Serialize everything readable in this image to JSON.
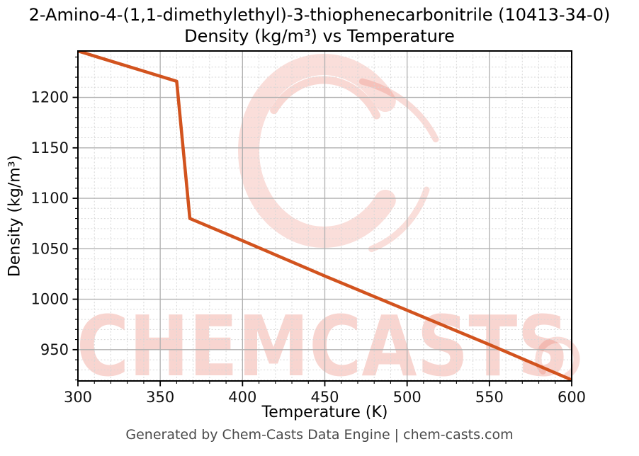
{
  "colors": {
    "line": "#d2531e",
    "watermark": "#e45c48",
    "grid_major": "#b0b0b0",
    "grid_minor": "#d6d6d6",
    "axis_spine": "#000000",
    "tick_label": "#111111",
    "footer_text": "#4a4a4a"
  },
  "header": {
    "title_line1": "2-Amino-4-(1,1-dimethylethyl)-3-thiophenecarbonitrile (10413-34-0)",
    "title_line2": "Density (kg/m³) vs Temperature"
  },
  "watermark": {
    "text": "CHEMCASTS",
    "logo": "chem-casts-c-swirl"
  },
  "footer": {
    "credit": "Generated by Chem-Casts Data Engine | chem-casts.com"
  },
  "chart_data": {
    "type": "line",
    "title": "2-Amino-4-(1,1-dimethylethyl)-3-thiophenecarbonitrile (10413-34-0) Density (kg/m³) vs Temperature",
    "xlabel": "Temperature (K)",
    "ylabel": "Density (kg/m³)",
    "xlim": [
      300,
      600
    ],
    "ylim": [
      919,
      1246
    ],
    "x_major_ticks": [
      300,
      350,
      400,
      450,
      500,
      550,
      600
    ],
    "y_major_ticks": [
      950,
      1000,
      1050,
      1100,
      1150,
      1200
    ],
    "x_minor_step": 10,
    "y_minor_step": 10,
    "grid": {
      "major": "solid gray",
      "minor": "dashed light-gray"
    },
    "legend_position": "none",
    "series": [
      {
        "name": "Density",
        "points": [
          [
            300,
            1246
          ],
          [
            320,
            1236
          ],
          [
            340,
            1226
          ],
          [
            360,
            1216
          ],
          [
            368,
            1080
          ],
          [
            400,
            1058
          ],
          [
            450,
            1023
          ],
          [
            500,
            989
          ],
          [
            550,
            955
          ],
          [
            600,
            920
          ]
        ]
      }
    ]
  }
}
